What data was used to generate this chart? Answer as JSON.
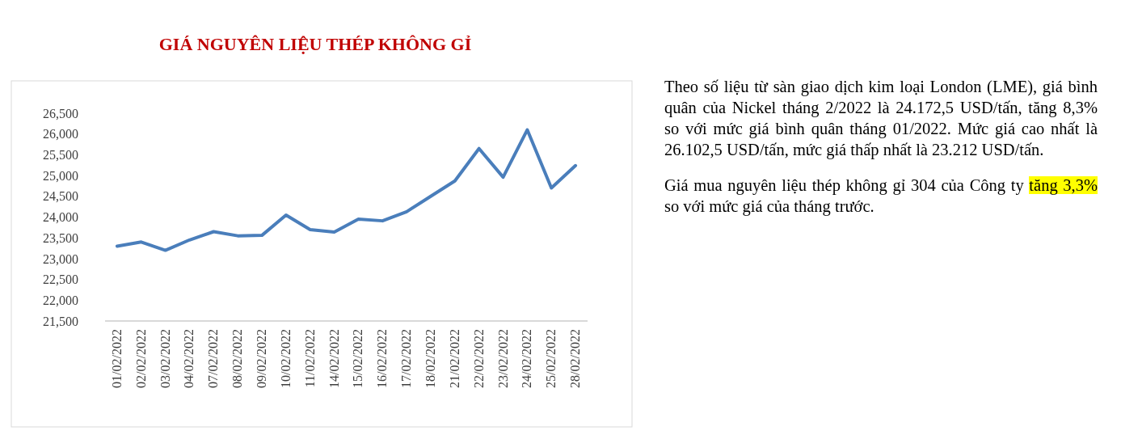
{
  "chart_data": {
    "type": "line",
    "title": "GIÁ NGUYÊN LIỆU THÉP KHÔNG GỈ",
    "categories": [
      "01/02/2022",
      "02/02/2022",
      "03/02/2022",
      "04/02/2022",
      "07/02/2022",
      "08/02/2022",
      "09/02/2022",
      "10/02/2022",
      "11/02/2022",
      "14/02/2022",
      "15/02/2022",
      "16/02/2022",
      "17/02/2022",
      "18/02/2022",
      "21/02/2022",
      "22/02/2022",
      "23/02/2022",
      "24/02/2022",
      "25/02/2022",
      "28/02/2022"
    ],
    "series": [
      {
        "color": "#4a7ebb",
        "values": [
          23300,
          23400,
          23200,
          23450,
          23650,
          23550,
          23560,
          24050,
          23700,
          23640,
          23950,
          23910,
          24130,
          24500,
          24870,
          25650,
          24960,
          26100,
          24700,
          25240
        ]
      }
    ],
    "ylim": [
      21500,
      26500
    ],
    "yticks": [
      {
        "value": 21500,
        "label": "21,500"
      },
      {
        "value": 22000,
        "label": "22,000"
      },
      {
        "value": 22500,
        "label": "22,500"
      },
      {
        "value": 23000,
        "label": "23,000"
      },
      {
        "value": 23500,
        "label": "23,500"
      },
      {
        "value": 24000,
        "label": "24,000"
      },
      {
        "value": 24500,
        "label": "24,500"
      },
      {
        "value": 25000,
        "label": "25,000"
      },
      {
        "value": 25500,
        "label": "25,500"
      },
      {
        "value": 26000,
        "label": "26,000"
      },
      {
        "value": 26500,
        "label": "26,500"
      }
    ],
    "grid": false,
    "marker": "none",
    "line_style": "solid",
    "annotations": [
      "Theo số liệu từ sàn giao dịch kim loại London (LME), giá bình quân của Nickel tháng 2/2022 là 24.172,5 USD/tấn, tăng 8,3% so với mức giá bình quân tháng 01/2022. Mức giá cao nhất là 26.102,5 USD/tấn, mức giá thấp nhất là 23.212 USD/tấn.",
      "Giá mua nguyên liệu thép không gỉ 304 của Công ty",
      "tăng 3,3%",
      "so với mức giá của tháng trước."
    ]
  }
}
